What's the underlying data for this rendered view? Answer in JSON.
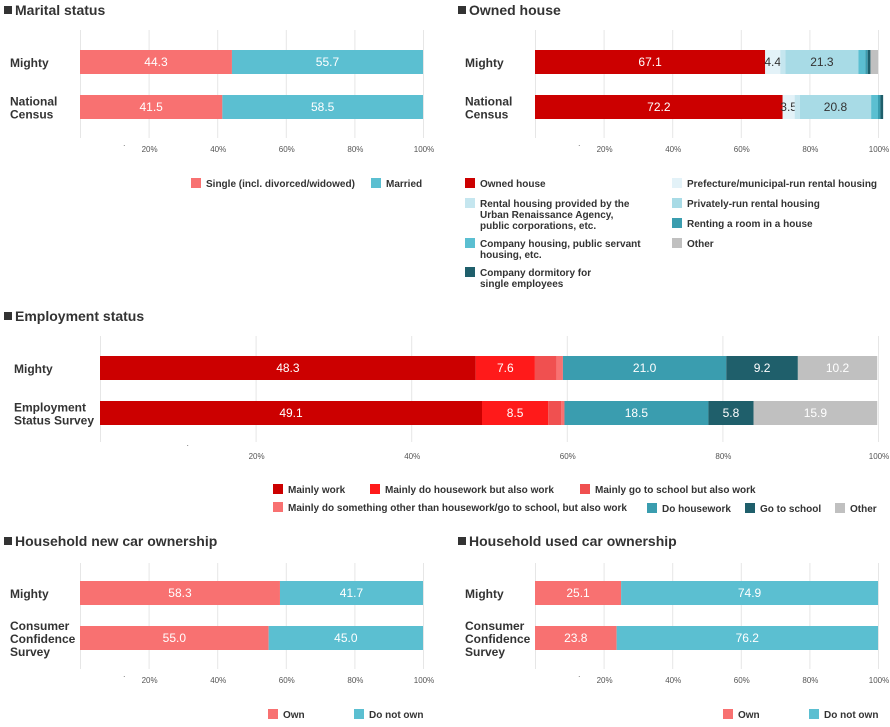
{
  "charts": [
    {
      "id": "marital",
      "title": "Marital status",
      "type": "bar",
      "orientation": "horizontal",
      "stacked": true,
      "categories": [
        "Mighty",
        "National Census"
      ],
      "category_lines": [
        [
          "Mighty"
        ],
        [
          "National",
          "Census"
        ]
      ],
      "series": [
        {
          "name": "Single (incl. divorced/widowed)",
          "color": "#f87171",
          "values": [
            44.3,
            41.5
          ],
          "labels": [
            "44.3",
            "41.5"
          ]
        },
        {
          "name": "Married",
          "color": "#5bbfd1",
          "values": [
            55.7,
            58.5
          ],
          "labels": [
            "55.7",
            "58.5"
          ]
        }
      ],
      "xticks": [
        "20%",
        "40%",
        "60%",
        "80%",
        "100%"
      ],
      "xlim": [
        0,
        100
      ],
      "legend_position": "bottom"
    },
    {
      "id": "house",
      "title": "Owned house",
      "type": "bar",
      "orientation": "horizontal",
      "stacked": true,
      "categories": [
        "Mighty",
        "National Census"
      ],
      "category_lines": [
        [
          "Mighty"
        ],
        [
          "National",
          "Census"
        ]
      ],
      "series": [
        {
          "name": "Owned house",
          "legend_lines": [
            "Owned house"
          ],
          "color": "#cc0000",
          "values": [
            67.1,
            72.2
          ],
          "labels": [
            "67.1",
            "72.2"
          ]
        },
        {
          "name": "Prefecture/municipal-run rental housing",
          "legend_lines": [
            "Prefecture/municipal-run rental housing"
          ],
          "color": "#e3f2f8",
          "values": [
            4.4,
            3.5
          ],
          "labels": [
            "4.4",
            "3.5"
          ]
        },
        {
          "name": "Rental housing provided by the Urban Renaissance Agency, public corporations, etc.",
          "legend_lines": [
            "Rental housing provided by the",
            "Urban Renaissance Agency,",
            "public corporations, etc."
          ],
          "color": "#c5e6ef",
          "values": [
            1.5,
            1.5
          ],
          "labels": [
            "",
            ""
          ]
        },
        {
          "name": "Privately-run rental housing",
          "legend_lines": [
            "Privately-run rental housing"
          ],
          "color": "#a8dbe6",
          "values": [
            21.3,
            20.8
          ],
          "labels": [
            "21.3",
            "20.8"
          ]
        },
        {
          "name": "Company housing, public servant housing, etc.",
          "legend_lines": [
            "Company housing, public servant",
            "housing, etc."
          ],
          "color": "#5bbfd1",
          "values": [
            2.0,
            2.0
          ],
          "labels": [
            "",
            ""
          ]
        },
        {
          "name": "Renting a room in a house",
          "legend_lines": [
            "Renting a room in a house"
          ],
          "color": "#3a9daf",
          "values": [
            0.7,
            0.7
          ],
          "labels": [
            "",
            ""
          ]
        },
        {
          "name": "Company dormitory for single employees",
          "legend_lines": [
            "Company dormitory for",
            "single employees"
          ],
          "color": "#1f5f6b",
          "values": [
            0.8,
            0.8
          ],
          "labels": [
            "",
            ""
          ]
        },
        {
          "name": "Other",
          "legend_lines": [
            "Other"
          ],
          "color": "#c0c0c0",
          "values": [
            2.2,
            0.0
          ],
          "labels": [
            "",
            ""
          ]
        }
      ],
      "xticks": [
        "20%",
        "40%",
        "60%",
        "80%",
        "100%"
      ],
      "xlim": [
        0,
        100
      ],
      "legend_position": "bottom"
    },
    {
      "id": "employment",
      "title": "Employment status",
      "type": "bar",
      "orientation": "horizontal",
      "stacked": true,
      "categories": [
        "Mighty",
        "Employment Status Survey"
      ],
      "category_lines": [
        [
          "Mighty"
        ],
        [
          "Employment",
          "Status Survey"
        ]
      ],
      "series": [
        {
          "name": "Mainly work",
          "color": "#cc0000",
          "values": [
            48.3,
            49.1
          ],
          "labels": [
            "48.3",
            "49.1"
          ]
        },
        {
          "name": "Mainly do housework but also work",
          "color": "#ff1a1a",
          "values": [
            7.6,
            8.5
          ],
          "labels": [
            "7.6",
            "8.5"
          ]
        },
        {
          "name": "Mainly go to school but also work",
          "color": "#f05050",
          "values": [
            2.8,
            1.7
          ],
          "labels": [
            "",
            ""
          ]
        },
        {
          "name": "Mainly do something other than housework/go to school, but also work",
          "color": "#f87171",
          "values": [
            0.8,
            0.4
          ],
          "labels": [
            "",
            ""
          ]
        },
        {
          "name": "Do housework",
          "color": "#3a9daf",
          "values": [
            21.0,
            18.5
          ],
          "labels": [
            "21.0",
            "18.5"
          ]
        },
        {
          "name": "Go to school",
          "color": "#1f5f6b",
          "values": [
            9.2,
            5.8
          ],
          "labels": [
            "9.2",
            "5.8"
          ]
        },
        {
          "name": "Other",
          "color": "#c0c0c0",
          "values": [
            10.2,
            15.9
          ],
          "labels": [
            "10.2",
            "15.9"
          ]
        }
      ],
      "xticks": [
        "20%",
        "40%",
        "60%",
        "80%",
        "100%"
      ],
      "xlim": [
        0,
        100
      ],
      "legend_position": "bottom"
    },
    {
      "id": "newcar",
      "title": "Household new car ownership",
      "type": "bar",
      "orientation": "horizontal",
      "stacked": true,
      "categories": [
        "Mighty",
        "Consumer Confidence Survey"
      ],
      "category_lines": [
        [
          "Mighty"
        ],
        [
          "Consumer",
          "Confidence",
          "Survey"
        ]
      ],
      "series": [
        {
          "name": "Own",
          "color": "#f87171",
          "values": [
            58.3,
            55.0
          ],
          "labels": [
            "58.3",
            "55.0"
          ]
        },
        {
          "name": "Do not own",
          "color": "#5bbfd1",
          "values": [
            41.7,
            45.0
          ],
          "labels": [
            "41.7",
            "45.0"
          ]
        }
      ],
      "xticks": [
        "20%",
        "40%",
        "60%",
        "80%",
        "100%"
      ],
      "xlim": [
        0,
        100
      ],
      "legend_position": "bottom"
    },
    {
      "id": "usedcar",
      "title": "Household used car ownership",
      "type": "bar",
      "orientation": "horizontal",
      "stacked": true,
      "categories": [
        "Mighty",
        "Consumer Confidence Survey"
      ],
      "category_lines": [
        [
          "Mighty"
        ],
        [
          "Consumer",
          "Confidence",
          "Survey"
        ]
      ],
      "series": [
        {
          "name": "Own",
          "color": "#f87171",
          "values": [
            25.1,
            23.8
          ],
          "labels": [
            "25.1",
            "23.8"
          ]
        },
        {
          "name": "Do not own",
          "color": "#5bbfd1",
          "values": [
            74.9,
            76.2
          ],
          "labels": [
            "74.9",
            "76.2"
          ]
        }
      ],
      "xticks": [
        "20%",
        "40%",
        "60%",
        "80%",
        "100%"
      ],
      "xlim": [
        0,
        100
      ],
      "legend_position": "bottom"
    }
  ]
}
